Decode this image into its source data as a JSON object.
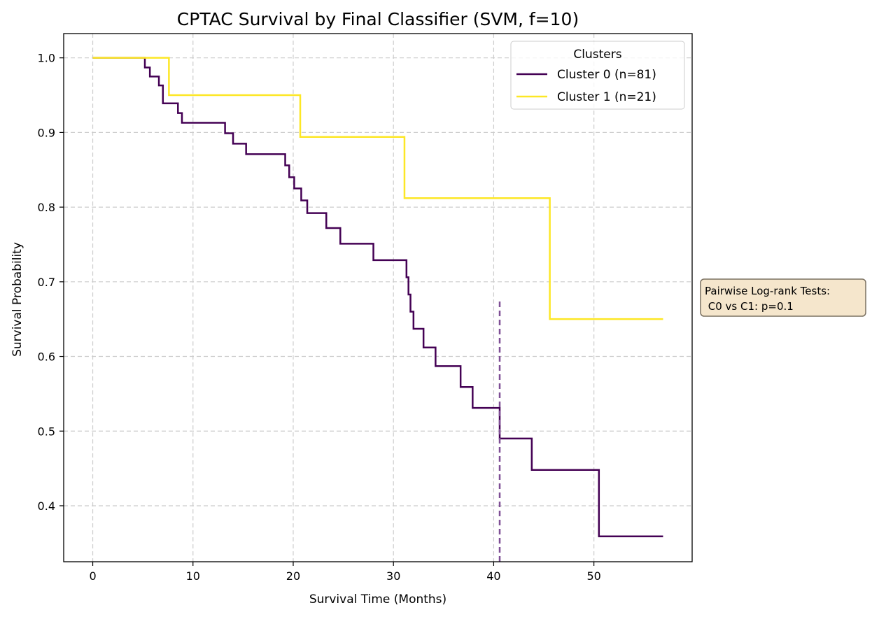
{
  "chart_data": {
    "type": "line",
    "step": true,
    "title": "CPTAC Survival by Final Classifier (SVM, f=10)",
    "xlabel": "Survival Time (Months)",
    "ylabel": "Survival Probability",
    "xlim": [
      -2.9,
      59.8
    ],
    "ylim": [
      0.325,
      1.0325
    ],
    "xticks": [
      0,
      10,
      20,
      30,
      40,
      50
    ],
    "yticks": [
      0.4,
      0.5,
      0.6,
      0.7,
      0.8,
      0.9,
      1.0
    ],
    "xtick_labels": [
      "0",
      "10",
      "20",
      "30",
      "40",
      "50"
    ],
    "ytick_labels": [
      "0.4",
      "0.5",
      "0.6",
      "0.7",
      "0.8",
      "0.9",
      "1.0"
    ],
    "grid": true,
    "legend": {
      "title": "Clusters",
      "placement": "top-right"
    },
    "series": [
      {
        "name": "Cluster 0 (n=81)",
        "color": "#440154",
        "x": [
          0,
          5.2,
          5.7,
          6.6,
          7.0,
          8.5,
          8.9,
          13.2,
          14.0,
          15.3,
          19.2,
          19.6,
          20.1,
          20.8,
          21.4,
          23.3,
          24.7,
          28.0,
          31.3,
          31.5,
          31.7,
          32.0,
          32.3,
          33.0,
          34.2,
          36.7,
          37.9,
          40.6,
          43.8,
          50.5,
          56.9
        ],
        "y": [
          1.0,
          0.987,
          0.975,
          0.963,
          0.939,
          0.926,
          0.913,
          0.899,
          0.885,
          0.871,
          0.856,
          0.84,
          0.825,
          0.809,
          0.792,
          0.772,
          0.751,
          0.729,
          0.706,
          0.683,
          0.66,
          0.637,
          0.637,
          0.612,
          0.587,
          0.559,
          0.531,
          0.49,
          0.448,
          0.359,
          0.359
        ]
      },
      {
        "name": "Cluster 1 (n=21)",
        "color": "#fde725",
        "x": [
          0,
          7.6,
          20.7,
          31.1,
          45.6,
          56.9
        ],
        "y": [
          1.0,
          0.95,
          0.894,
          0.812,
          0.65,
          0.65
        ]
      }
    ],
    "vline": {
      "x": 40.6,
      "y_range": [
        0.325,
        0.678
      ],
      "color": "#7f4f95",
      "style": "dashed"
    },
    "annotation": {
      "lines": [
        "Pairwise Log-rank Tests:",
        " C0 vs C1: p=0.1"
      ],
      "background": "#f5e6cc",
      "border": "#7a7060"
    }
  }
}
